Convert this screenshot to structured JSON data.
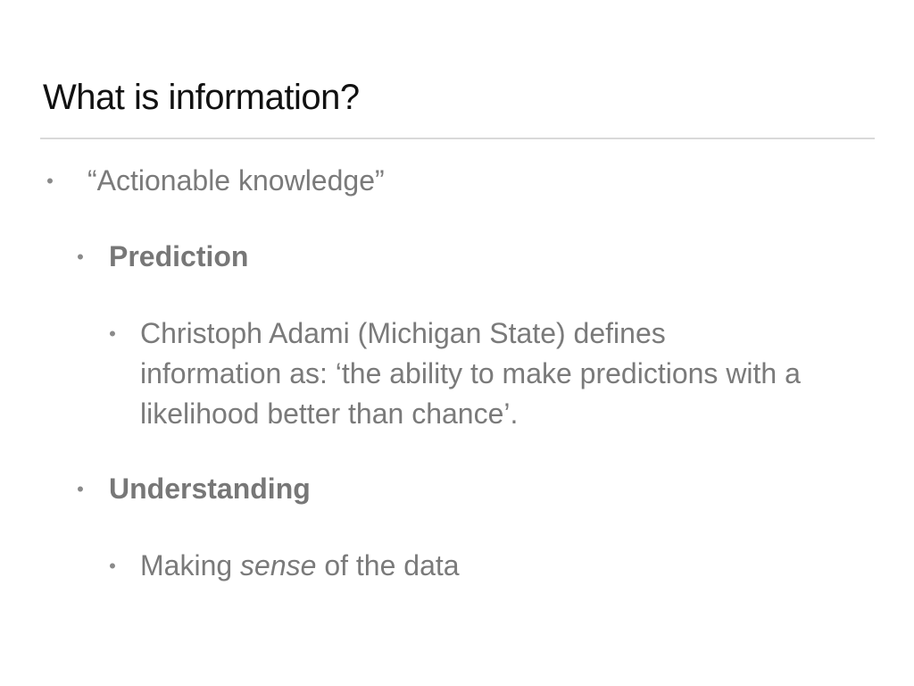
{
  "slide": {
    "title": "What is information?",
    "bullets": [
      {
        "text": "“Actionable knowledge”"
      },
      {
        "text": "Prediction"
      },
      {
        "lines": [
          "Christoph Adami (Michigan State) defines",
          "information as: ‘the ability to make predictions with a",
          "likelihood better than chance’."
        ]
      },
      {
        "text": "Understanding"
      },
      {
        "pre": "Making ",
        "em": "sense",
        "post": " of the data"
      }
    ],
    "bullet_glyph": "•",
    "colors": {
      "title": "#111111",
      "body": "#7a7a7a",
      "rule": "#d9d9d9"
    }
  }
}
